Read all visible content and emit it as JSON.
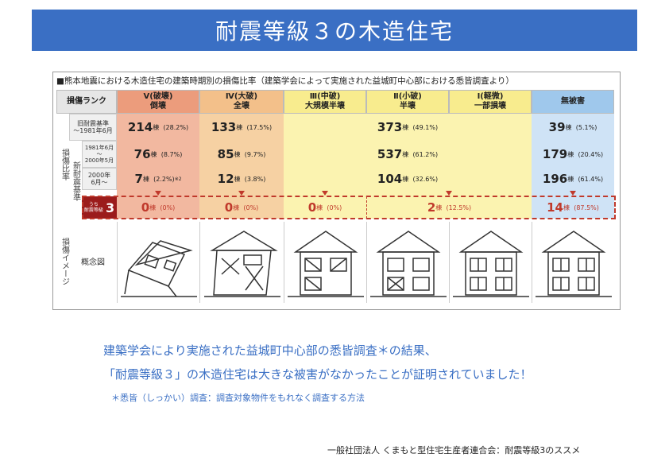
{
  "title": "耐震等級３の木造住宅",
  "caption": "■熊本地震における木造住宅の建築時期別の損傷比率（建築学会によって実施された益城町中心部における悉皆調査より）",
  "table": {
    "rank_header": "損傷ランク",
    "columns": [
      {
        "roman": "Ⅴ(破壊)",
        "sub": "倒壊"
      },
      {
        "roman": "Ⅳ(大破)",
        "sub": "全壊"
      },
      {
        "roman": "Ⅲ(中破)",
        "sub": "大規模半壊"
      },
      {
        "roman": "Ⅱ(小破)",
        "sub": "半壊"
      },
      {
        "roman": "Ⅰ(軽微)",
        "sub": "一部損壊"
      },
      {
        "roman": "",
        "sub": "無被害"
      }
    ],
    "side_label_ratio": "損傷比率",
    "side_label_new": "新耐震基準",
    "side_label_image": "損傷イメージ",
    "footnote_mark": "※1",
    "rows": {
      "old": {
        "label1": "旧耐震基準",
        "label2": "～1981年6月",
        "v": "214",
        "v_pct": "(28.2%)",
        "iv": "133",
        "iv_pct": "(17.5%)",
        "mid": "373",
        "mid_pct": "(49.1%)",
        "none": "39",
        "none_pct": "(5.1%)"
      },
      "r1981": {
        "label1": "1981年6月",
        "label2": "～",
        "label3": "2000年5月",
        "v": "76",
        "v_pct": "(8.7%)",
        "iv": "85",
        "iv_pct": "(9.7%)",
        "mid": "537",
        "mid_pct": "(61.2%)",
        "none": "179",
        "none_pct": "(20.4%)"
      },
      "r2000": {
        "label1": "2000年",
        "label2": "6月～",
        "v": "7",
        "v_pct": "(2.2%)",
        "v_note": "※2",
        "iv": "12",
        "iv_pct": "(3.8%)",
        "mid": "104",
        "mid_pct": "(32.6%)",
        "none": "196",
        "none_pct": "(61.4%)"
      },
      "grade3": {
        "label_small": "うち",
        "label_main": "耐震等級",
        "label_num": "3",
        "v": "0",
        "v_pct": "(0%)",
        "iv": "0",
        "iv_pct": "(0%)",
        "iii": "0",
        "iii_pct": "(0%)",
        "ii_i": "2",
        "ii_i_pct": "(12.5%)",
        "none": "14",
        "none_pct": "(87.5%)"
      }
    },
    "unit": "棟",
    "concept_label": "概念図"
  },
  "body": {
    "line1": "建築学会により実施された益城町中心部の悉皆調査＊の結果、",
    "line2": "「耐震等級３」の木造住宅は大きな被害がなかったことが証明されていました！",
    "note": "＊悉皆（しっかい）調査：調査対象物件をもれなく調査する方法"
  },
  "footer": "一般社団法人 くまもと型住宅生産者連合会：耐震等級3のススメ",
  "colors": {
    "banner": "#3a6fc4",
    "col_v": "#f2b8a0",
    "col_iv": "#f6d1a3",
    "col_mid": "#fbf3b0",
    "col_none": "#cfe3f6",
    "grade3_badge": "#9b1c1c",
    "accent_red": "#c0392b"
  }
}
